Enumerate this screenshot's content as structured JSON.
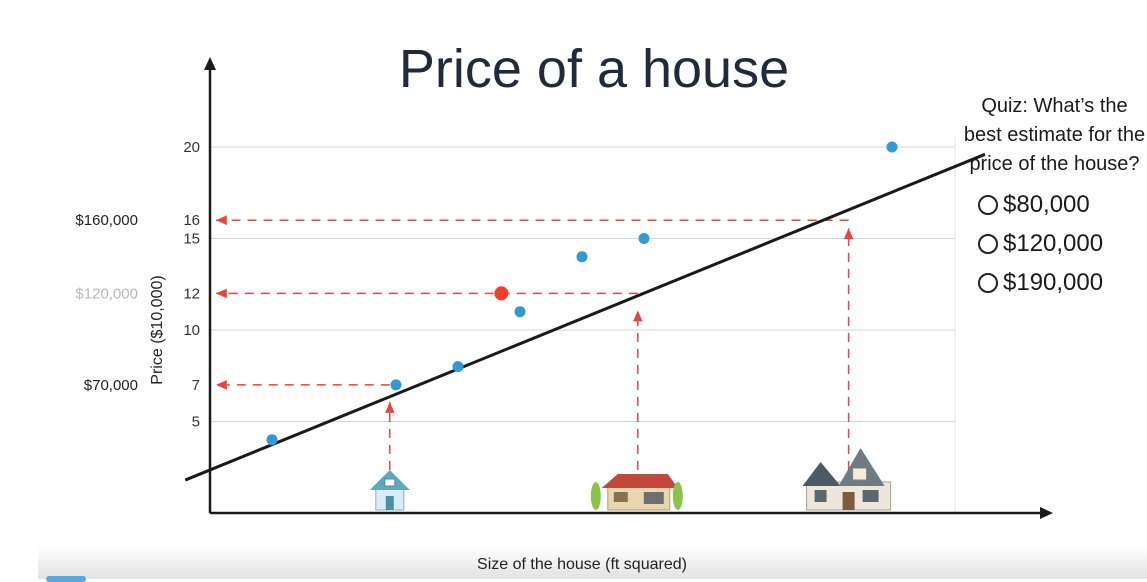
{
  "title": "Price of a house",
  "quiz": {
    "question": "Quiz: What’s the best estimate for the price of the house?",
    "options": [
      "$80,000",
      "$120,000",
      "$190,000"
    ]
  },
  "chart_data": {
    "type": "scatter",
    "title": "Price of a house",
    "xlabel": "Size of the house (ft squared)",
    "ylabel": "Price ($10,000)",
    "y_ticks": [
      5,
      7,
      10,
      12,
      15,
      16,
      20
    ],
    "y_tick_labels": [
      "5",
      "7",
      "10",
      "12",
      "15",
      "16",
      "20"
    ],
    "ylim": [
      0,
      20
    ],
    "grid": true,
    "series": [
      {
        "x": [
          1.0,
          3.0,
          4.0,
          5.0,
          6.0,
          7.0,
          11.0
        ],
        "y": [
          4,
          7,
          8,
          11,
          14,
          15,
          20
        ],
        "color": "#2f9bd6"
      }
    ],
    "highlight_point": {
      "x": 4.7,
      "y": 12,
      "color": "#f0402c"
    },
    "fit_line": {
      "x": [
        -0.4,
        12.5
      ],
      "y": [
        1.8,
        19.6
      ],
      "color": "#1a1a1a"
    },
    "price_annotations": [
      {
        "label": "$160,000",
        "y": 16,
        "x_from": 10.3,
        "faded": false
      },
      {
        "label": "$120,000",
        "y": 12,
        "x_from": 6.9,
        "faded": true
      },
      {
        "label": "$70,000",
        "y": 7,
        "x_from": 2.9,
        "faded": false
      }
    ],
    "house_guides": [
      {
        "x": 2.9,
        "y": 6.5,
        "icon": "small-house-icon"
      },
      {
        "x": 6.9,
        "y": 11.5,
        "icon": "medium-house-icon"
      },
      {
        "x": 10.3,
        "y": 16,
        "icon": "large-house-icon"
      }
    ],
    "guide_color": "#e8453c"
  }
}
